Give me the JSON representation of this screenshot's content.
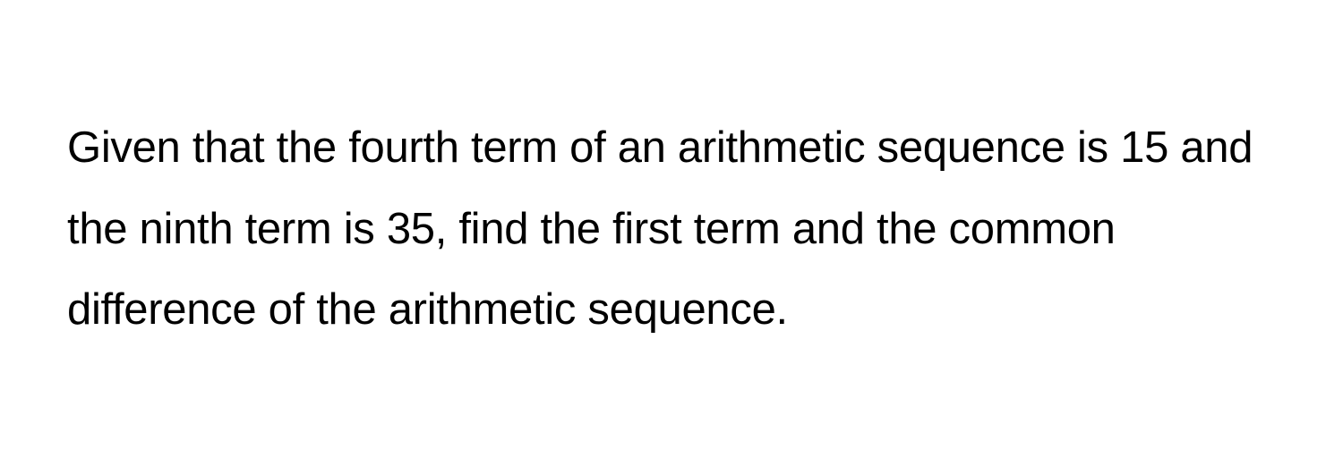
{
  "problem": {
    "text": "Given that the fourth term of an arithmetic sequence is 15 and the ninth term is 35, find the first term and the common difference of the arithmetic sequence.",
    "font_size": 49,
    "line_height": 1.85,
    "text_color": "#000000",
    "background_color": "#ffffff"
  }
}
